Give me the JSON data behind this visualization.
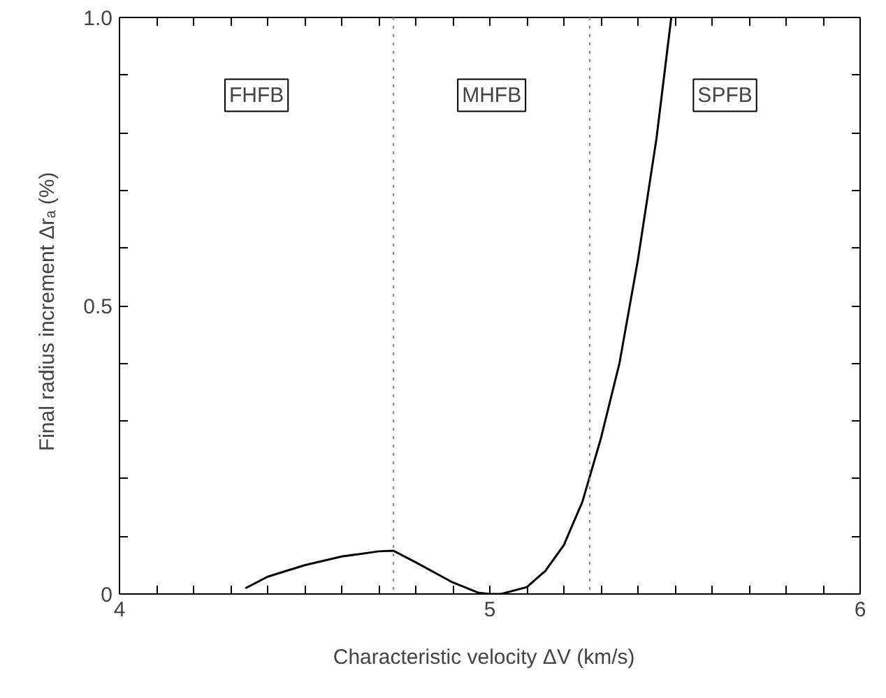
{
  "chart_data": {
    "type": "line",
    "xlabel": "Characteristic velocity  ΔV  (km/s)",
    "ylabel": "Final radius increment  Δrₐ  (%)",
    "x": [
      4.34,
      4.4,
      4.5,
      4.6,
      4.7,
      4.74,
      4.8,
      4.9,
      4.97,
      5.0,
      5.03,
      5.1,
      5.15,
      5.2,
      5.25,
      5.3,
      5.35,
      5.4,
      5.45,
      5.49
    ],
    "series": [
      {
        "color": "#000000",
        "values": [
          0.01,
          0.03,
          0.05,
          0.065,
          0.074,
          0.075,
          0.055,
          0.02,
          0.002,
          0.0,
          0.0,
          0.012,
          0.04,
          0.085,
          0.16,
          0.27,
          0.4,
          0.58,
          0.79,
          1.0
        ]
      }
    ],
    "xlim": [
      4,
      6
    ],
    "ylim": [
      0,
      1
    ],
    "xticks": [
      4,
      {
        "value": 4.1,
        "label": null
      },
      {
        "value": 4.2,
        "label": null
      },
      {
        "value": 4.3,
        "label": null
      },
      {
        "value": 4.4,
        "label": null
      },
      {
        "value": 4.5,
        "label": null
      },
      {
        "value": 4.6,
        "label": null
      },
      {
        "value": 4.7,
        "label": null
      },
      {
        "value": 4.8,
        "label": null
      },
      {
        "value": 4.9,
        "label": null
      },
      5,
      {
        "value": 5.1,
        "label": null
      },
      {
        "value": 5.2,
        "label": null
      },
      {
        "value": 5.3,
        "label": null
      },
      {
        "value": 5.4,
        "label": null
      },
      {
        "value": 5.5,
        "label": null
      },
      {
        "value": 5.6,
        "label": null
      },
      {
        "value": 5.7,
        "label": null
      },
      {
        "value": 5.8,
        "label": null
      },
      {
        "value": 5.9,
        "label": null
      },
      6
    ],
    "yticks": [
      0,
      {
        "value": 0.1,
        "label": null
      },
      {
        "value": 0.2,
        "label": null
      },
      {
        "value": 0.3,
        "label": null
      },
      {
        "value": 0.4,
        "label": null
      },
      0.5,
      {
        "value": 0.6,
        "label": null
      },
      {
        "value": 0.7,
        "label": null
      },
      {
        "value": 0.8,
        "label": null
      },
      {
        "value": 0.9,
        "label": null
      },
      {
        "value": 1,
        "label": "1.0"
      }
    ],
    "ref_lines": [
      {
        "axis": "x",
        "value": 4.74,
        "line_style": "dotted",
        "color": "#888888"
      },
      {
        "axis": "x",
        "value": 5.27,
        "line_style": "dotted",
        "color": "#888888"
      }
    ],
    "annotations": [
      "FHFB",
      "MHFB",
      "SPFB"
    ],
    "grid": false,
    "marker": "none",
    "line_style": "solid"
  }
}
